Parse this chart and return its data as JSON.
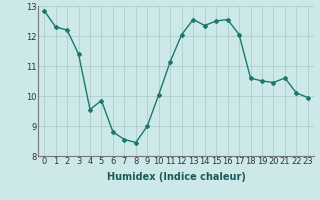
{
  "x": [
    0,
    1,
    2,
    3,
    4,
    5,
    6,
    7,
    8,
    9,
    10,
    11,
    12,
    13,
    14,
    15,
    16,
    17,
    18,
    19,
    20,
    21,
    22,
    23
  ],
  "y": [
    12.85,
    12.3,
    12.2,
    11.4,
    9.55,
    9.85,
    8.8,
    8.55,
    8.45,
    9.0,
    10.05,
    11.15,
    12.05,
    12.55,
    12.35,
    12.5,
    12.55,
    12.05,
    10.6,
    10.5,
    10.45,
    10.6,
    10.1,
    9.95
  ],
  "line_color": "#1a7a6a",
  "marker": "D",
  "marker_size": 2,
  "bg_color": "#cce8e8",
  "grid_color": "#b0cccc",
  "xlabel": "Humidex (Indice chaleur)",
  "xlabel_fontsize": 7,
  "tick_fontsize": 6,
  "ylim": [
    8,
    13
  ],
  "xlim": [
    -0.5,
    23.5
  ],
  "yticks": [
    8,
    9,
    10,
    11,
    12,
    13
  ],
  "xticks": [
    0,
    1,
    2,
    3,
    4,
    5,
    6,
    7,
    8,
    9,
    10,
    11,
    12,
    13,
    14,
    15,
    16,
    17,
    18,
    19,
    20,
    21,
    22,
    23
  ]
}
